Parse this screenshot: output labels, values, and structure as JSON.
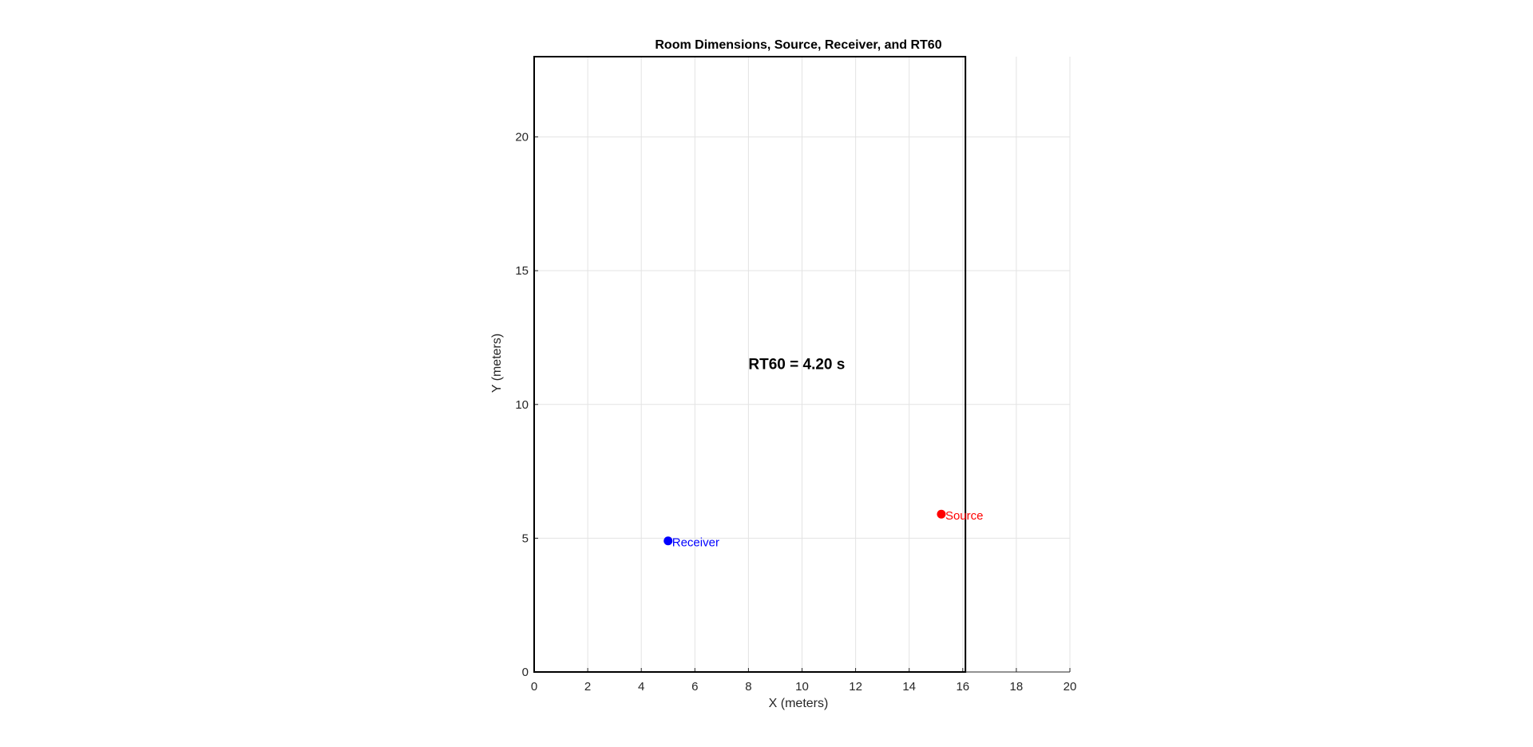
{
  "chart_data": {
    "type": "scatter",
    "title": "Room Dimensions, Source, Receiver, and RT60",
    "xlabel": "X (meters)",
    "ylabel": "Y (meters)",
    "xlim": [
      0,
      20
    ],
    "ylim": [
      0,
      23
    ],
    "xticks": [
      0,
      2,
      4,
      6,
      8,
      10,
      12,
      14,
      16,
      18,
      20
    ],
    "yticks": [
      0,
      5,
      10,
      15,
      20
    ],
    "grid": true,
    "room": {
      "x": [
        0,
        16.1
      ],
      "y": [
        0,
        23
      ]
    },
    "points": [
      {
        "label": "Receiver",
        "x": 5.0,
        "y": 4.9,
        "color": "#0000ff"
      },
      {
        "label": "Source",
        "x": 15.2,
        "y": 5.9,
        "color": "#ff0000"
      }
    ],
    "annotation": {
      "text": "RT60 = 4.20 s",
      "x": 8.0,
      "y": 11.5
    }
  }
}
